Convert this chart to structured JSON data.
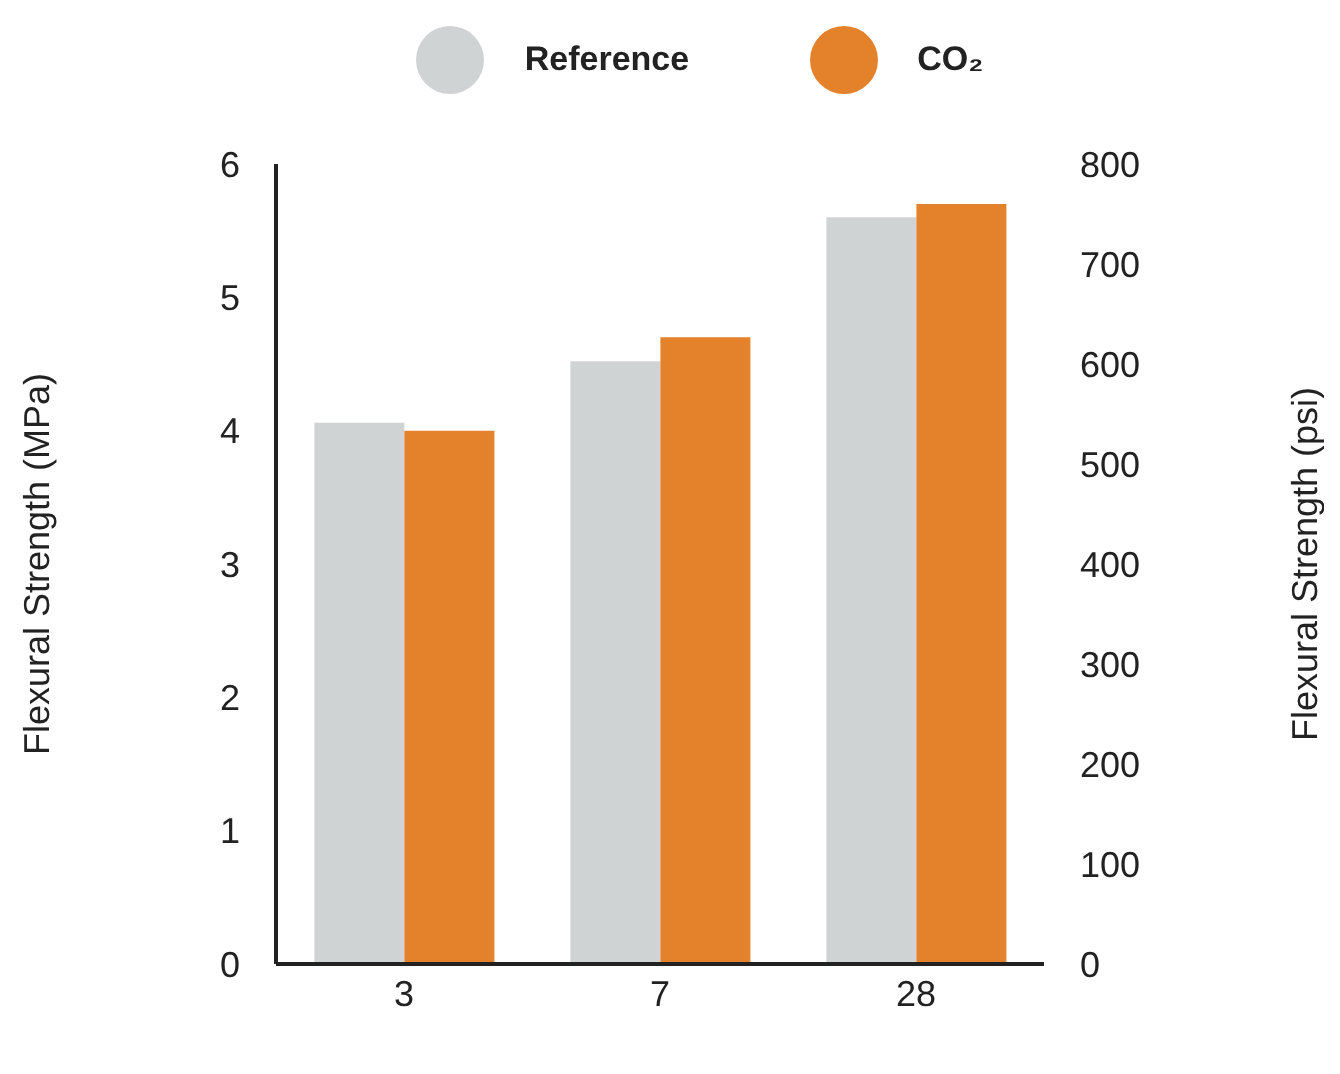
{
  "chart_data": {
    "type": "bar",
    "categories": [
      "3",
      "7",
      "28"
    ],
    "ylabel": "Flexural Strength (MPa)",
    "y2label": "Flexural Strength (psi)",
    "ylim": [
      0,
      6
    ],
    "yticks": [
      0,
      1,
      2,
      3,
      4,
      5,
      6
    ],
    "y2lim": [
      0,
      800
    ],
    "y2ticks": [
      0,
      100,
      200,
      300,
      400,
      500,
      600,
      700,
      800
    ],
    "legend": "top",
    "grid": false,
    "series": [
      {
        "name": "Reference",
        "color": "#d0d3d4",
        "values": [
          4.06,
          4.52,
          5.6
        ]
      },
      {
        "name": "CO₂",
        "color": "#e3822a",
        "values": [
          4.0,
          4.7,
          5.7
        ]
      }
    ]
  }
}
